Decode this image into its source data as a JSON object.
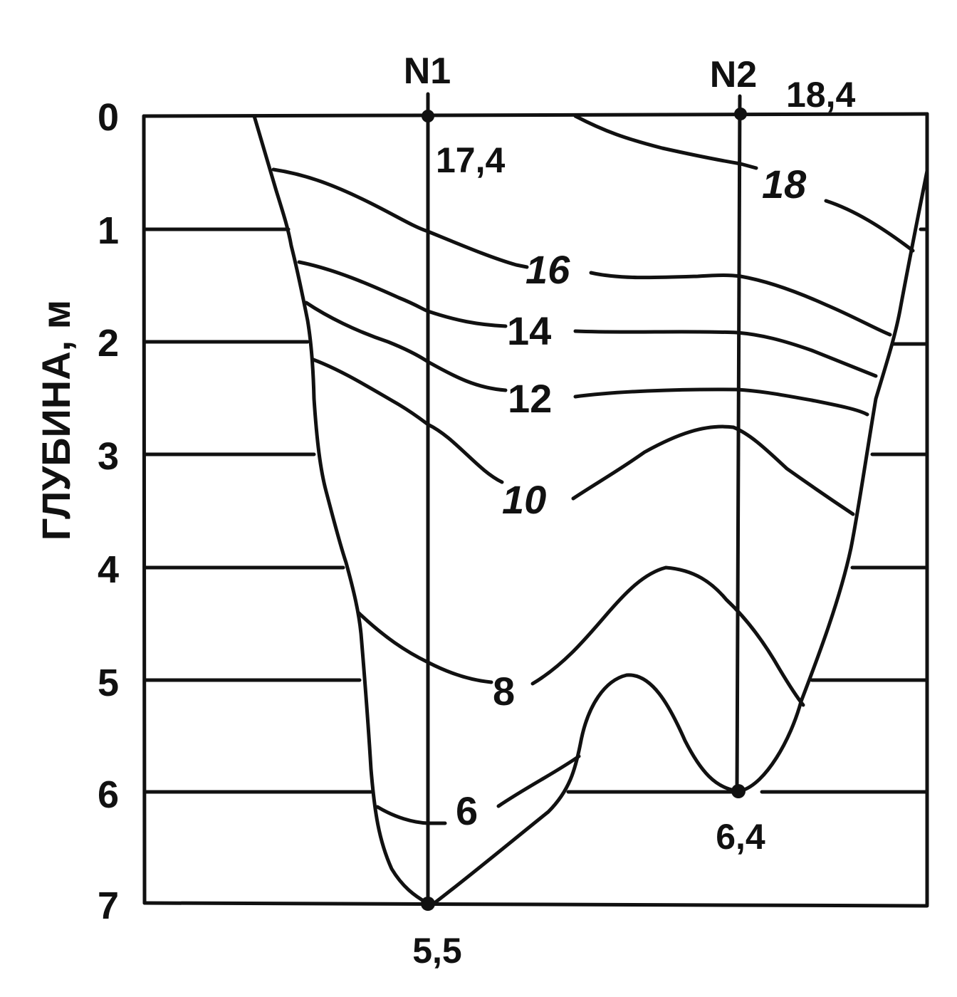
{
  "chart_data": {
    "type": "isotherm-section",
    "ylabel": "ГЛУБИНА, м",
    "y_ticks": [
      "0",
      "1",
      "2",
      "3",
      "4",
      "5",
      "6",
      "7"
    ],
    "ylim": [
      0,
      7
    ],
    "depth_levels": [
      1,
      2,
      3,
      4,
      5,
      6
    ],
    "stations": [
      {
        "name": "N1",
        "surface_value": "17,4",
        "bottom_value": "5,5",
        "bottom_depth": 7.0
      },
      {
        "name": "N2",
        "surface_value": "18,4",
        "bottom_value": "6,4",
        "bottom_depth": 6.0
      }
    ],
    "isotherm_labels": [
      {
        "text": "18",
        "italic": true
      },
      {
        "text": "16",
        "italic": true
      },
      {
        "text": "14",
        "italic": false
      },
      {
        "text": "12",
        "italic": false
      },
      {
        "text": "10",
        "italic": true
      },
      {
        "text": "8",
        "italic": false
      },
      {
        "text": "6",
        "italic": false
      }
    ],
    "colors": {
      "ink": "#111111",
      "background": "#ffffff"
    }
  }
}
